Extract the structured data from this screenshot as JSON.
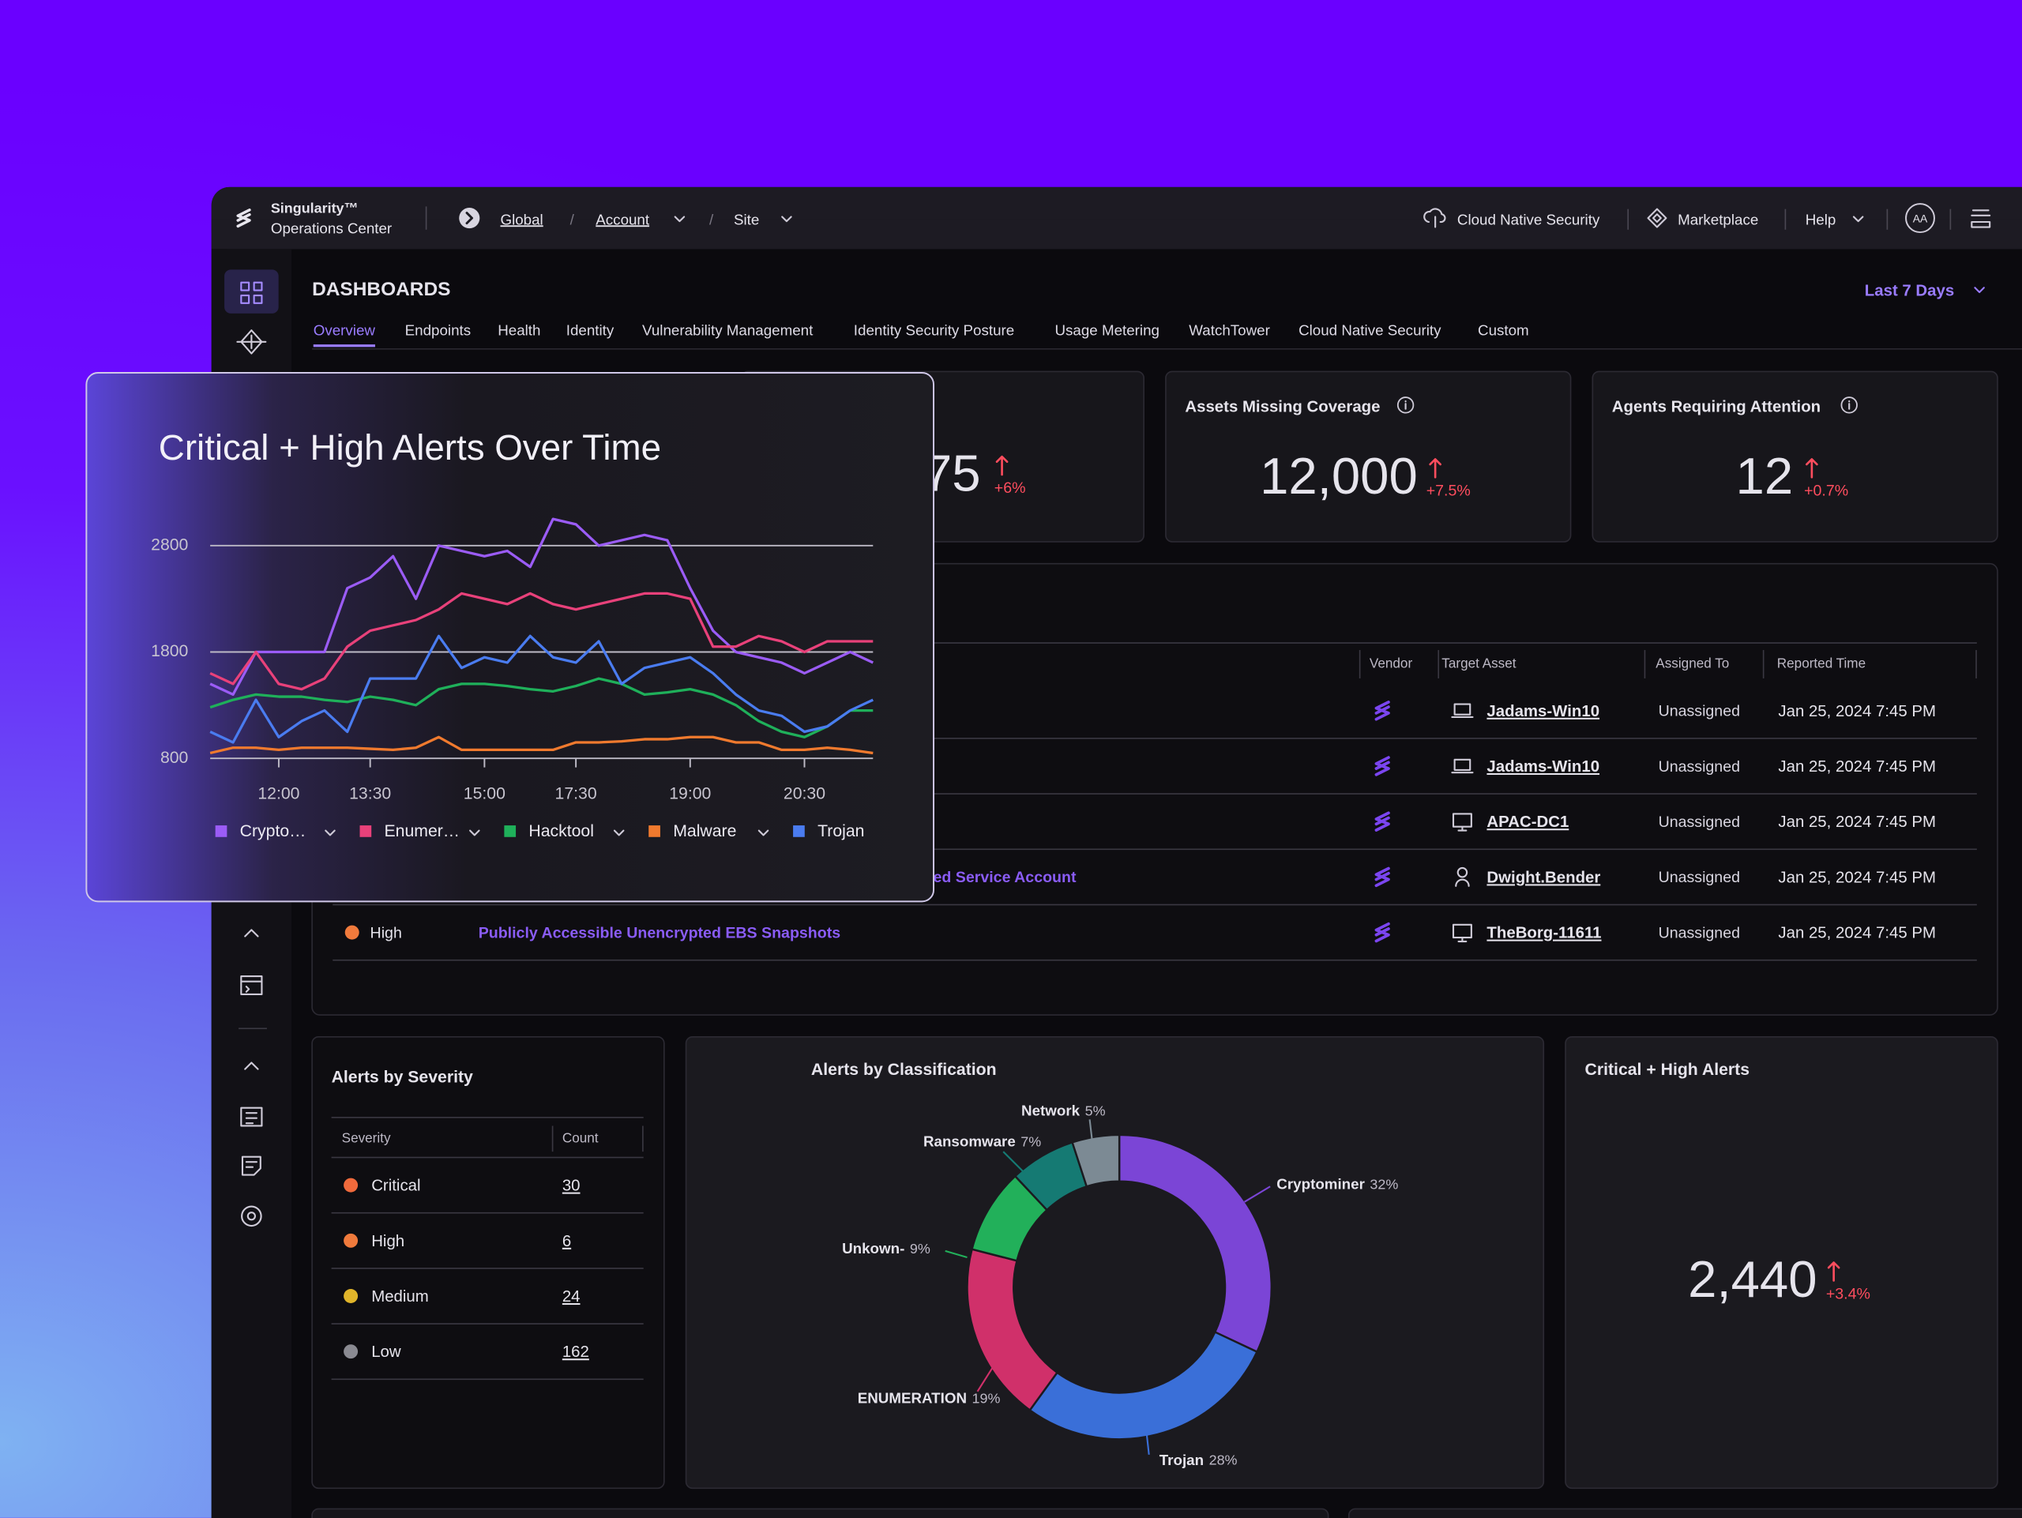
{
  "topbar": {
    "brand": "Singularity™",
    "product": "Operations Center",
    "scope": [
      "Global",
      "Account",
      "Site"
    ],
    "separator": "/",
    "links": [
      "Cloud Native Security",
      "Marketplace",
      "Help"
    ],
    "avatar": "AA"
  },
  "dashboard": {
    "title": "DASHBOARDS",
    "range": "Last 7 Days",
    "tabs": [
      "Overview",
      "Endpoints",
      "Health",
      "Identity",
      "Vulnerability Management",
      "Identity Security Posture",
      "Usage Metering",
      "WatchTower",
      "Cloud Native Security",
      "Custom"
    ]
  },
  "kpis": [
    {
      "value": "75",
      "change": "+6%"
    },
    {
      "label": "Assets Missing Coverage",
      "value": "12,000",
      "change": "+7.5%"
    },
    {
      "label": "Agents Requiring Attention",
      "value": "12",
      "change": "+0.7%"
    }
  ],
  "alerts_table": {
    "columns": [
      "Vendor",
      "Target Asset",
      "Assigned To",
      "Reported Time"
    ],
    "rows": [
      {
        "target": "Jadams-Win10",
        "assigned": "Unassigned",
        "time": "Jan 25, 2024 7:45 PM"
      },
      {
        "target": "Jadams-Win10",
        "assigned": "Unassigned",
        "time": "Jan 25, 2024 7:45 PM"
      },
      {
        "target": "APAC-DC1",
        "assigned": "Unassigned",
        "time": "Jan 25, 2024 7:45 PM"
      },
      {
        "name": "red Service Account",
        "target": "Dwight.Bender",
        "assigned": "Unassigned",
        "time": "Jan 25, 2024 7:45 PM"
      },
      {
        "severity": "High",
        "name": "Publicly Accessible Unencrypted EBS Snapshots",
        "target": "TheBorg-11611",
        "assigned": "Unassigned",
        "time": "Jan 25, 2024 7:45 PM"
      }
    ]
  },
  "severity_panel": {
    "title": "Alerts by Severity",
    "columns": [
      "Severity",
      "Count"
    ],
    "rows": [
      {
        "label": "Critical",
        "count": 30
      },
      {
        "label": "High",
        "count": 6
      },
      {
        "label": "Medium",
        "count": 24
      },
      {
        "label": "Low",
        "count": 162
      }
    ]
  },
  "critical_high": {
    "title": "Critical + High Alerts",
    "value": "2,440",
    "change": "+3.4%"
  },
  "chart_data": [
    {
      "type": "line",
      "title": "Critical + High Alerts Over Time",
      "categories": [
        null,
        null,
        null,
        "12:00",
        null,
        null,
        null,
        "13:30",
        null,
        null,
        null,
        null,
        "15:00",
        null,
        null,
        null,
        "17:30",
        null,
        null,
        null,
        null,
        "19:00",
        null,
        null,
        null,
        null,
        "20:30",
        null,
        null,
        null
      ],
      "ylim": [
        800,
        3200
      ],
      "yticks": [
        800,
        1800,
        2800
      ],
      "grid": true,
      "series": [
        {
          "name": "Crypto…",
          "color": "#9b5cf6",
          "values": [
            1500,
            1400,
            1800,
            1800,
            1800,
            1800,
            2400,
            2500,
            2700,
            2300,
            2800,
            2750,
            2700,
            2750,
            2600,
            3050,
            3000,
            2800,
            2850,
            2900,
            2850,
            2400,
            2000,
            1800,
            1750,
            1700,
            1600,
            1700,
            1800,
            1700
          ]
        },
        {
          "name": "Enumer…",
          "color": "#e8417a",
          "values": [
            1600,
            1500,
            1800,
            1500,
            1450,
            1550,
            1850,
            2000,
            2050,
            2100,
            2200,
            2350,
            2300,
            2250,
            2350,
            2250,
            2200,
            2250,
            2300,
            2350,
            2350,
            2300,
            1850,
            1850,
            1950,
            1900,
            1800,
            1900,
            1900,
            1900
          ]
        },
        {
          "name": "Hacktool",
          "color": "#1fb05a",
          "values": [
            1280,
            1350,
            1400,
            1380,
            1380,
            1350,
            1330,
            1380,
            1350,
            1300,
            1450,
            1500,
            1500,
            1480,
            1450,
            1430,
            1480,
            1550,
            1500,
            1400,
            1420,
            1450,
            1400,
            1300,
            1150,
            1050,
            1000,
            1100,
            1250,
            1250
          ]
        },
        {
          "name": "Malware",
          "color": "#f07a2e",
          "values": [
            850,
            900,
            900,
            880,
            900,
            900,
            900,
            890,
            880,
            900,
            1000,
            880,
            880,
            880,
            880,
            880,
            950,
            950,
            960,
            980,
            980,
            1000,
            1000,
            950,
            950,
            880,
            880,
            900,
            880,
            850
          ]
        },
        {
          "name": "Trojan",
          "color": "#4a7cf0",
          "values": [
            1050,
            950,
            1350,
            1000,
            1150,
            1250,
            1050,
            1550,
            1550,
            1550,
            1950,
            1650,
            1750,
            1700,
            1950,
            1750,
            1700,
            1900,
            1500,
            1650,
            1700,
            1750,
            1600,
            1400,
            1250,
            1200,
            1050,
            1100,
            1250,
            1350
          ]
        }
      ]
    },
    {
      "type": "donut",
      "title": "Alerts by Classification",
      "categories": [
        "Cryptominer",
        "Trojan",
        "ENUMERATION",
        "Unkown-",
        "Ransomware",
        "Network"
      ],
      "values": [
        32,
        28,
        19,
        9,
        7,
        5
      ],
      "value_labels": [
        "32%",
        "28%",
        "19%",
        "9%",
        "7%",
        "5%"
      ],
      "colors": [
        "#7b45d6",
        "#3a6fd8",
        "#d0306a",
        "#22b05a",
        "#157a73",
        "#7c8a94"
      ]
    }
  ]
}
